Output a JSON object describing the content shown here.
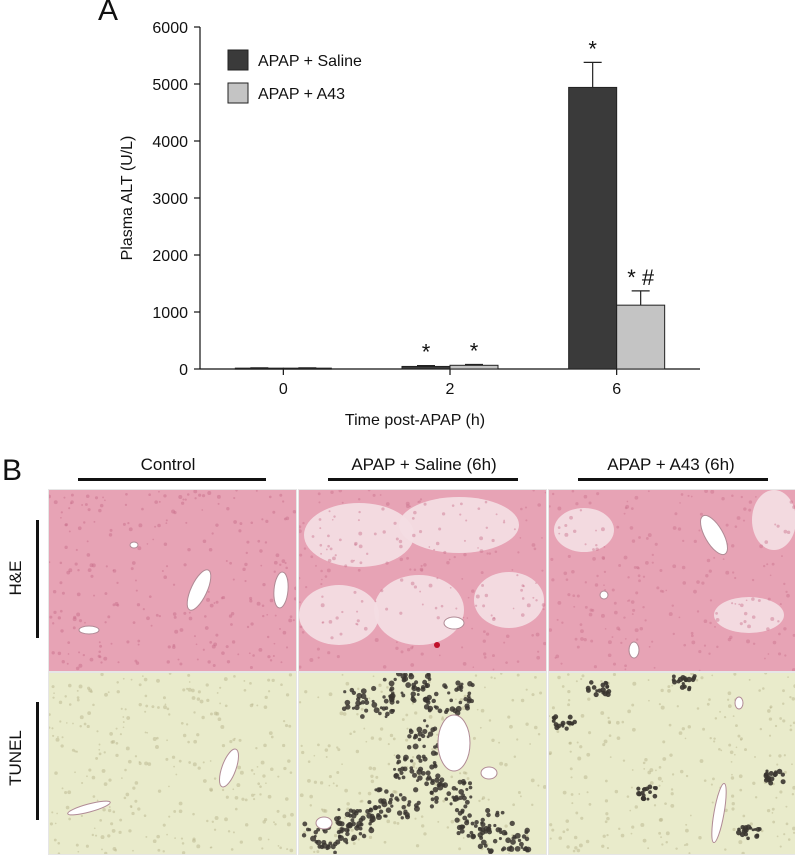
{
  "panel_a_label": "A",
  "panel_b_label": "B",
  "chart_data": {
    "type": "bar",
    "title": "",
    "xlabel": "Time post-APAP (h)",
    "ylabel": "Plasma ALT (U/L)",
    "categories": [
      "0",
      "2",
      "6"
    ],
    "ylim": [
      0,
      6000
    ],
    "yticks": [
      0,
      1000,
      2000,
      3000,
      4000,
      5000,
      6000
    ],
    "grid": false,
    "legend_position": "top-left",
    "series": [
      {
        "name": "APAP + Saline",
        "color": "#3a3a3a",
        "values": [
          15,
          45,
          4940
        ],
        "errors": [
          5,
          15,
          440
        ],
        "annotations": [
          "",
          "*",
          "*"
        ]
      },
      {
        "name": "APAP + A43",
        "color": "#c4c4c4",
        "values": [
          15,
          65,
          1120
        ],
        "errors": [
          5,
          15,
          250
        ],
        "annotations": [
          "",
          "*",
          "* #"
        ]
      }
    ]
  },
  "panel_b": {
    "columns": [
      "Control",
      "APAP + Saline (6h)",
      "APAP + A43 (6h)"
    ],
    "rows": [
      "H&E",
      "TUNEL"
    ],
    "colors": {
      "he_tissue": "#e7a3b5",
      "he_pale": "#f3dde3",
      "tunel_tissue": "#e9ebcb",
      "tunel_stain": "#3a3530"
    }
  }
}
